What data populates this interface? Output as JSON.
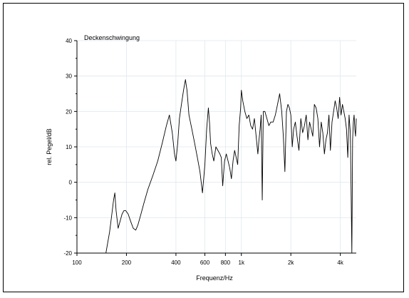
{
  "chart_data": {
    "type": "line",
    "title": "Deckenschwingung",
    "xlabel": "Frequenz/Hz",
    "ylabel": "rel. Pegel/dB",
    "x_scale": "log",
    "xlim": [
      100,
      5000
    ],
    "ylim": [
      -20,
      40
    ],
    "grid": true,
    "x_ticks": [
      100,
      200,
      400,
      600,
      800,
      1000,
      2000,
      4000
    ],
    "x_tick_labels": [
      "100",
      "200",
      "400",
      "600",
      "800",
      "1k",
      "2k",
      "4k"
    ],
    "y_ticks": [
      -20,
      -10,
      0,
      10,
      20,
      30,
      40
    ],
    "y_tick_labels": [
      "-20",
      "-10",
      "0",
      "10",
      "20",
      "30",
      "40"
    ],
    "series": [
      {
        "color": "#000000",
        "x": [
          150,
          158,
          163,
          167,
          170,
          173,
          178,
          183,
          188,
          193,
          198,
          205,
          212,
          220,
          228,
          235,
          245,
          255,
          270,
          290,
          310,
          330,
          350,
          365,
          380,
          392,
          400,
          410,
          420,
          432,
          445,
          457,
          467,
          480,
          500,
          520,
          540,
          560,
          580,
          600,
          615,
          630,
          640,
          650,
          665,
          680,
          700,
          720,
          740,
          755,
          770,
          790,
          810,
          830,
          850,
          870,
          890,
          910,
          930,
          950,
          970,
          990,
          1000,
          1020,
          1050,
          1080,
          1110,
          1140,
          1170,
          1200,
          1230,
          1260,
          1280,
          1300,
          1320,
          1340,
          1360,
          1390,
          1430,
          1470,
          1510,
          1560,
          1610,
          1660,
          1710,
          1760,
          1800,
          1840,
          1880,
          1920,
          1960,
          2000,
          2040,
          2080,
          2130,
          2180,
          2240,
          2300,
          2360,
          2420,
          2480,
          2540,
          2600,
          2660,
          2720,
          2780,
          2850,
          2920,
          2990,
          3060,
          3130,
          3200,
          3270,
          3340,
          3410,
          3480,
          3560,
          3640,
          3720,
          3800,
          3880,
          3960,
          4040,
          4120,
          4200,
          4280,
          4360,
          4440,
          4520,
          4600,
          4650,
          4700,
          4750,
          4800,
          4850,
          4900,
          4950,
          5000
        ],
        "y": [
          -20,
          -14,
          -9,
          -5,
          -3,
          -8,
          -13,
          -11,
          -9,
          -8,
          -8,
          -9,
          -11,
          -13,
          -13.5,
          -12,
          -9,
          -6,
          -2,
          2,
          6,
          11,
          16,
          19,
          14,
          8,
          6,
          11,
          18,
          22,
          26,
          29,
          26,
          19,
          15,
          11,
          7,
          3,
          -3,
          5,
          15,
          21,
          17,
          11,
          8,
          6,
          10,
          9,
          8,
          7,
          -1,
          6,
          8,
          6,
          4,
          1,
          6,
          9,
          7,
          5,
          16,
          21,
          26,
          23,
          20,
          18,
          19,
          16,
          15,
          18,
          13,
          8,
          12,
          15,
          19,
          -5,
          20,
          20,
          18,
          16,
          17,
          17,
          19,
          22,
          25,
          20,
          13,
          3,
          20,
          22,
          21,
          19,
          10,
          15,
          17,
          13,
          9,
          18,
          14,
          16,
          19,
          12,
          17,
          15,
          13,
          22,
          21,
          18,
          10,
          17,
          14,
          8,
          12,
          14,
          19,
          9,
          17,
          20,
          23,
          21,
          18,
          24,
          19,
          22,
          20,
          18,
          15,
          7,
          19,
          14,
          -2,
          -20,
          12,
          17,
          19,
          15,
          13,
          18
        ]
      }
    ]
  }
}
